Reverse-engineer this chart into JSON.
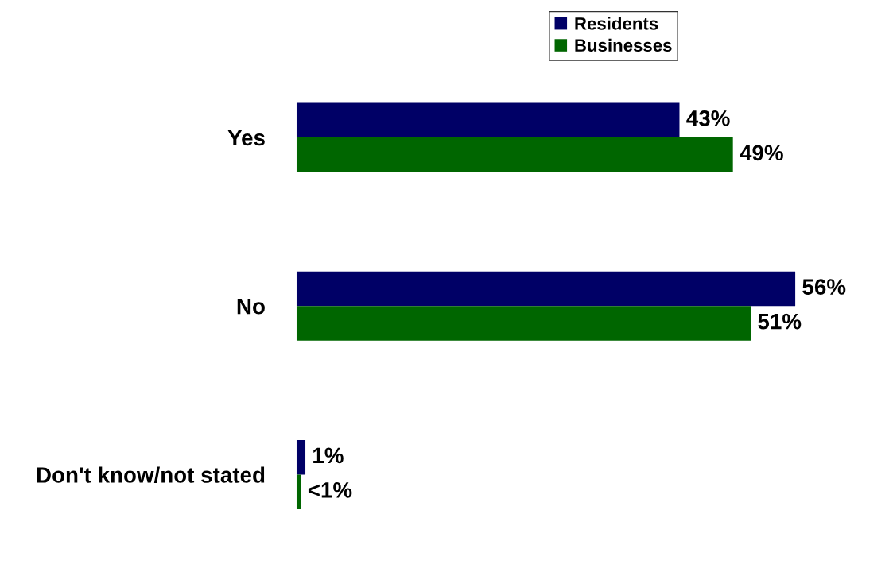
{
  "chart_data": {
    "type": "bar",
    "orientation": "horizontal",
    "categories": [
      "Yes",
      "No",
      "Don't know/not stated"
    ],
    "series": [
      {
        "name": "Residents",
        "color": "#000066",
        "values": [
          43,
          56,
          1
        ],
        "value_labels": [
          "43%",
          "56%",
          "1%"
        ]
      },
      {
        "name": "Businesses",
        "color": "#006600",
        "values": [
          49,
          51,
          0.5
        ],
        "value_labels": [
          "49%",
          "51%",
          "<1%"
        ]
      }
    ],
    "legend": "top",
    "grid": false
  }
}
